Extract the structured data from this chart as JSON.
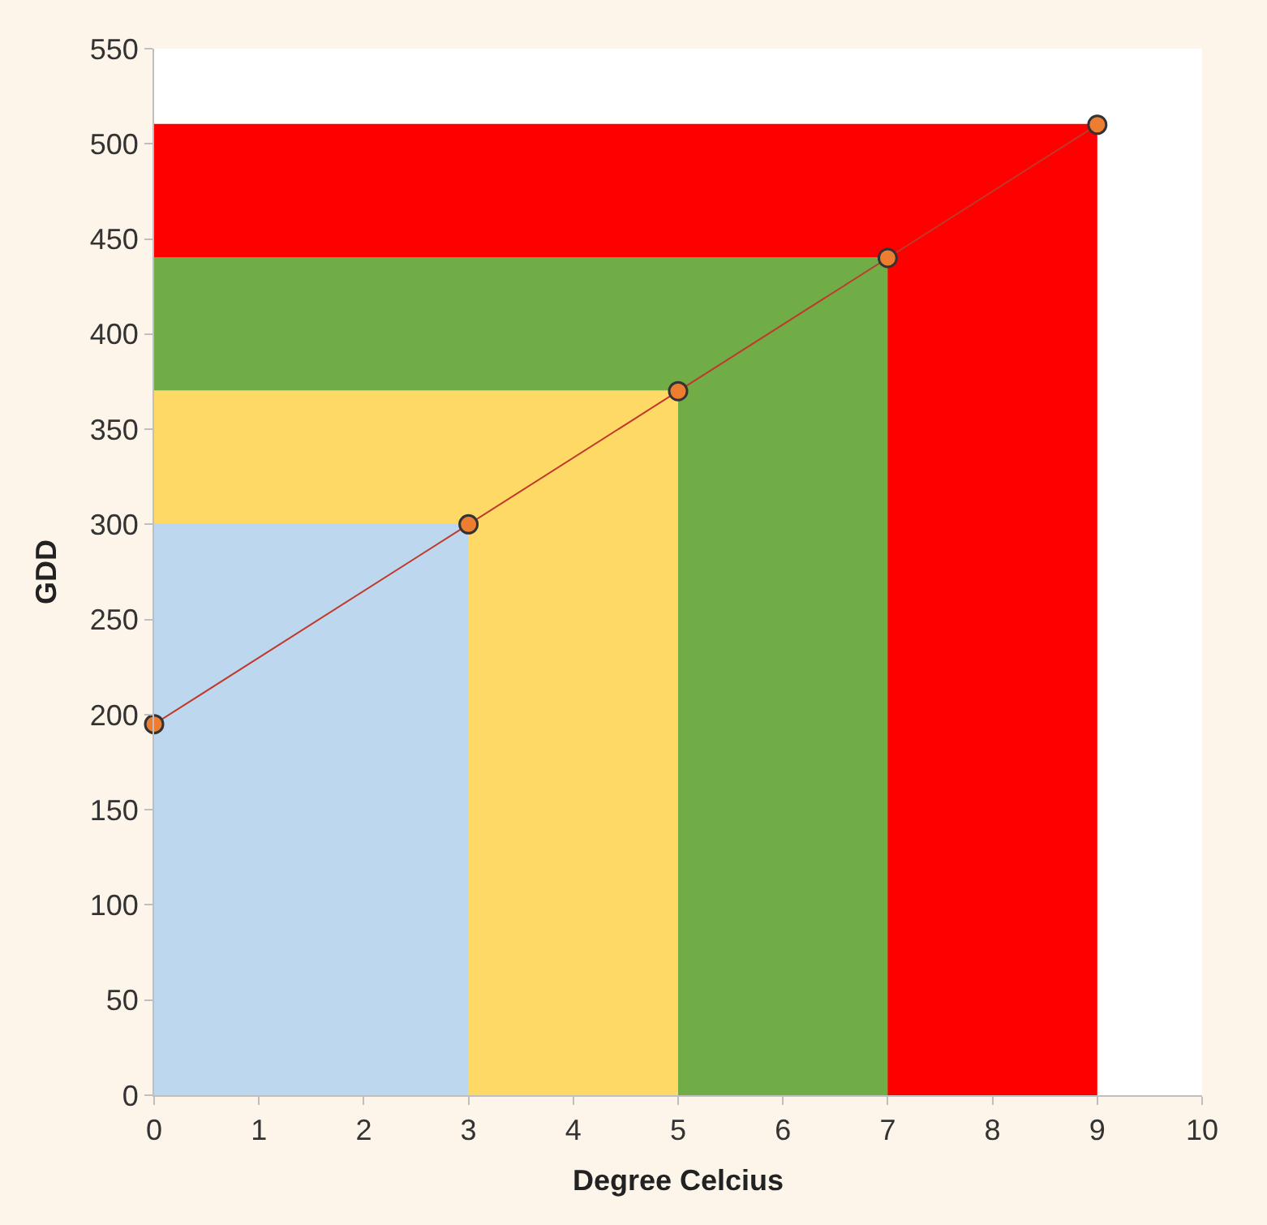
{
  "chart_data": {
    "type": "area",
    "xlabel": "Degree Celcius",
    "ylabel": "GDD",
    "xlim": [
      0,
      10
    ],
    "xticks": [
      0,
      1,
      2,
      3,
      4,
      5,
      6,
      7,
      8,
      9,
      10
    ],
    "ylim": [
      0,
      550
    ],
    "yticks": [
      0,
      50,
      100,
      150,
      200,
      250,
      300,
      350,
      400,
      450,
      500,
      550
    ],
    "series": [
      {
        "color": "#ff0000",
        "x": [
          0,
          9
        ],
        "values": [
          510,
          510
        ]
      },
      {
        "color": "#70ad47",
        "x": [
          0,
          7
        ],
        "values": [
          440,
          440
        ]
      },
      {
        "color": "#ffd966",
        "x": [
          0,
          5
        ],
        "values": [
          370,
          370
        ]
      },
      {
        "color": "#bdd7ee",
        "x": [
          0,
          3
        ],
        "values": [
          300,
          300
        ]
      },
      {
        "type": "line",
        "color": "#ed7d31",
        "marker": "circle",
        "x": [
          0,
          3,
          5,
          7,
          9
        ],
        "values": [
          195,
          300,
          370,
          440,
          510
        ]
      }
    ]
  }
}
